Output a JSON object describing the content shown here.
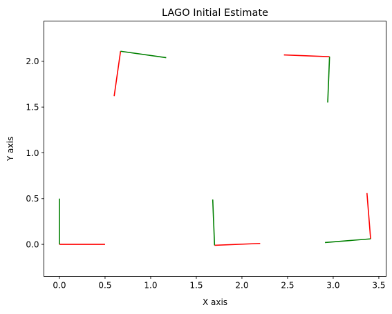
{
  "chart_data": {
    "type": "line",
    "title": "LAGO Initial Estimate",
    "xlabel": "X axis",
    "ylabel": "Y axis",
    "xlim": [
      -0.17,
      3.58
    ],
    "ylim": [
      -0.35,
      2.44
    ],
    "xticks": [
      0.0,
      0.5,
      1.0,
      1.5,
      2.0,
      2.5,
      3.0,
      3.5
    ],
    "xtick_labels": [
      "0.0",
      "0.5",
      "1.0",
      "1.5",
      "2.0",
      "2.5",
      "3.0",
      "3.5"
    ],
    "yticks": [
      0.0,
      0.5,
      1.0,
      1.5,
      2.0
    ],
    "ytick_labels": [
      "0.0",
      "0.5",
      "1.0",
      "1.5",
      "2.0"
    ],
    "grid": false,
    "legend": false,
    "axis_colors": {
      "x_axis": "#ff0000",
      "y_axis": "#008000"
    },
    "poses": [
      {
        "x": 0.0,
        "y": 0.0,
        "x_axis_end": [
          0.5,
          0.0
        ],
        "y_axis_end": [
          0.0,
          0.5
        ]
      },
      {
        "x": 1.7,
        "y": -0.01,
        "x_axis_end": [
          2.2,
          0.01
        ],
        "y_axis_end": [
          1.68,
          0.49
        ]
      },
      {
        "x": 3.41,
        "y": 0.06,
        "x_axis_end": [
          3.37,
          0.56
        ],
        "y_axis_end": [
          2.91,
          0.02
        ]
      },
      {
        "x": 2.96,
        "y": 2.05,
        "x_axis_end": [
          2.46,
          2.07
        ],
        "y_axis_end": [
          2.94,
          1.55
        ]
      },
      {
        "x": 0.67,
        "y": 2.11,
        "x_axis_end": [
          0.6,
          1.62
        ],
        "y_axis_end": [
          1.17,
          2.04
        ]
      }
    ]
  }
}
